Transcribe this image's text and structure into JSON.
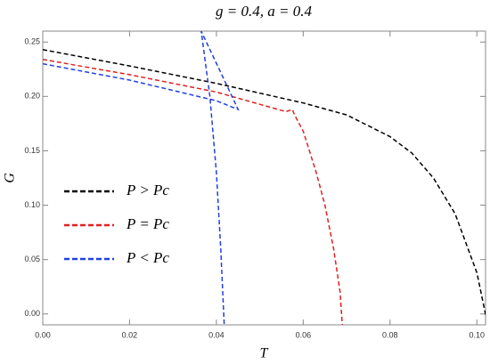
{
  "chart_data": {
    "type": "line",
    "title": "g = 0.4, a = 0.4",
    "x_label": "T",
    "y_label": "G",
    "xlim": [
      0,
      0.102
    ],
    "ylim": [
      -0.01,
      0.26
    ],
    "xticks": [
      {
        "value": 0,
        "label": "0.00"
      },
      0.02,
      0.04,
      0.06,
      0.08,
      {
        "value": 0.1,
        "label": "0.10"
      }
    ],
    "yticks": [
      {
        "value": 0,
        "label": "0.00"
      },
      0.05,
      {
        "value": 0.1,
        "label": "0.10"
      },
      0.15,
      {
        "value": 0.2,
        "label": "0.20"
      },
      0.25
    ],
    "legend": "left",
    "series": [
      {
        "name": "P > Pc",
        "color": "#000000",
        "x": [
          0,
          0.02,
          0.04,
          0.06,
          0.07,
          0.08,
          0.085,
          0.09,
          0.095,
          0.1,
          0.1025
        ],
        "values": [
          0.243,
          0.228,
          0.212,
          0.194,
          0.183,
          0.163,
          0.148,
          0.125,
          0.092,
          0.038,
          -0.01
        ]
      },
      {
        "name": "P = Pc",
        "color": "#e02020",
        "x": [
          0,
          0.02,
          0.04,
          0.056,
          0.0575,
          0.058,
          0.06,
          0.063,
          0.065,
          0.067,
          0.0685,
          0.069
        ],
        "values": [
          0.234,
          0.22,
          0.204,
          0.186,
          0.188,
          0.183,
          0.168,
          0.13,
          0.1,
          0.06,
          0.02,
          -0.01
        ]
      },
      {
        "name": "P < Pc",
        "color": "#2040e0",
        "x": [
          0,
          0.02,
          0.04,
          0.045,
          0.041,
          0.0365,
          0.0385,
          0.04,
          0.041,
          0.0418
        ],
        "values": [
          0.23,
          0.215,
          0.196,
          0.188,
          0.222,
          0.26,
          0.2,
          0.13,
          0.06,
          -0.01
        ]
      }
    ]
  }
}
